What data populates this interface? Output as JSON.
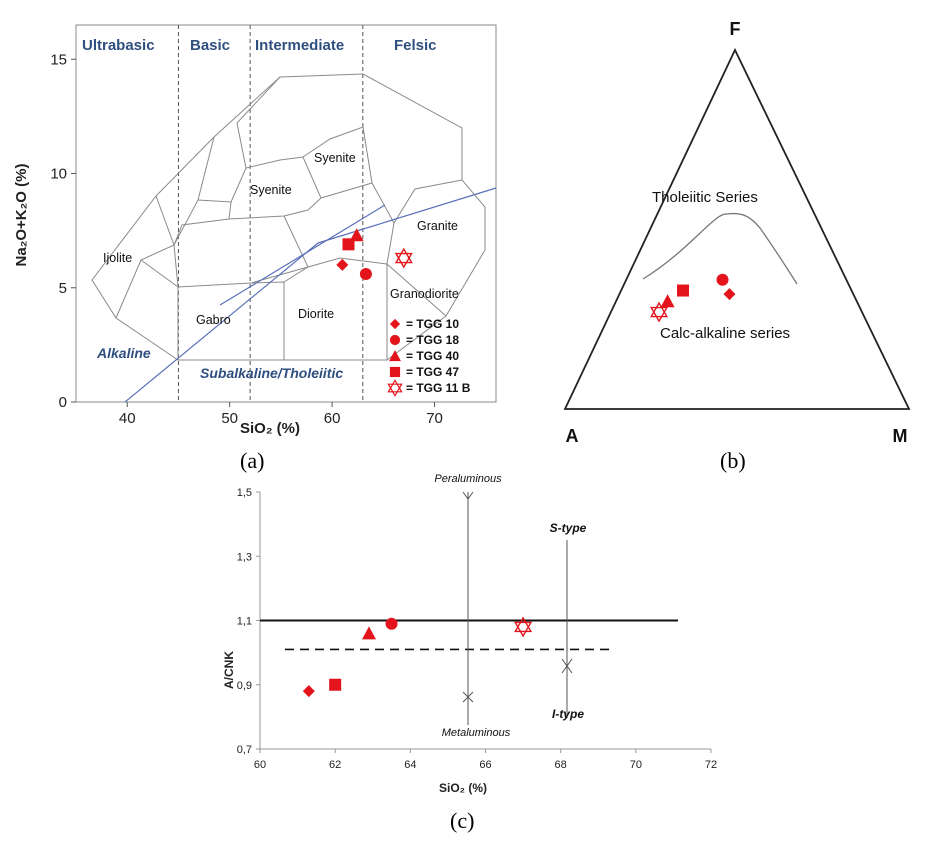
{
  "chart_data": [
    {
      "type": "scatter",
      "title": "",
      "xlabel": "SiO₂ (%)",
      "ylabel": "Na₂O+K₂O (%)",
      "xlim": [
        35,
        76
      ],
      "ylim": [
        0,
        16.5
      ],
      "xticks": [
        40,
        50,
        60,
        70
      ],
      "yticks": [
        0,
        5,
        10,
        15
      ],
      "caption": "(a)",
      "zones": [
        {
          "label": "Ultrabasic"
        },
        {
          "label": "Basic"
        },
        {
          "label": "Intermediate"
        },
        {
          "label": "Felsic"
        }
      ],
      "zone_boundaries_sio2": [
        45,
        52,
        63
      ],
      "series_labels": [
        "Alkaline",
        "Subalkaline/Tholeiitic"
      ],
      "field_labels": [
        "Ijolite",
        "Gabro",
        "Diorite",
        "Syenite",
        "Syenite",
        "Granite",
        "Granodiorite"
      ],
      "series": [
        {
          "name": "= TGG 10",
          "marker": "diamond",
          "x": 61.0,
          "y": 6.0
        },
        {
          "name": "= TGG 18",
          "marker": "circle",
          "x": 63.3,
          "y": 5.6
        },
        {
          "name": "= TGG 40",
          "marker": "triangle",
          "x": 62.4,
          "y": 7.3
        },
        {
          "name": "= TGG 47",
          "marker": "square",
          "x": 61.6,
          "y": 6.9
        },
        {
          "name": "= TGG 11 B",
          "marker": "star",
          "x": 67.0,
          "y": 6.3
        }
      ]
    },
    {
      "type": "ternary",
      "title": "",
      "vertices": {
        "top": "F",
        "left": "A",
        "right": "M"
      },
      "caption": "(b)",
      "region_labels": [
        "Tholeiitic Series",
        "Calc-alkaline series"
      ],
      "points_fam": [
        {
          "marker": "circle",
          "F": 0.36,
          "A": 0.36,
          "M": 0.28
        },
        {
          "marker": "diamond",
          "F": 0.32,
          "A": 0.36,
          "M": 0.32
        },
        {
          "marker": "square",
          "F": 0.33,
          "A": 0.49,
          "M": 0.18
        },
        {
          "marker": "triangle",
          "F": 0.3,
          "A": 0.55,
          "M": 0.15
        },
        {
          "marker": "star",
          "F": 0.27,
          "A": 0.59,
          "M": 0.14
        }
      ]
    },
    {
      "type": "scatter",
      "title": "",
      "xlabel": "SiO₂ (%)",
      "ylabel": "A/CNK",
      "xlim": [
        60,
        72
      ],
      "ylim": [
        0.7,
        1.5
      ],
      "xticks": [
        "60",
        "62",
        "64",
        "66",
        "68",
        "70",
        "72"
      ],
      "yticks": [
        "0,7",
        "0,9",
        "1,1",
        "1,3",
        "1,5"
      ],
      "caption": "(c)",
      "reference_lines": [
        {
          "style": "solid",
          "y": 1.1
        },
        {
          "style": "dashed",
          "y": 1.01
        }
      ],
      "annotations": [
        "Peraluminous",
        "Metaluminous",
        "S-type",
        "I-type"
      ],
      "points": [
        {
          "marker": "diamond",
          "x": 61.3,
          "y": 0.88
        },
        {
          "marker": "square",
          "x": 62.0,
          "y": 0.9
        },
        {
          "marker": "triangle",
          "x": 62.9,
          "y": 1.06
        },
        {
          "marker": "circle",
          "x": 63.5,
          "y": 1.09
        },
        {
          "marker": "star",
          "x": 67.0,
          "y": 1.08
        }
      ]
    }
  ]
}
